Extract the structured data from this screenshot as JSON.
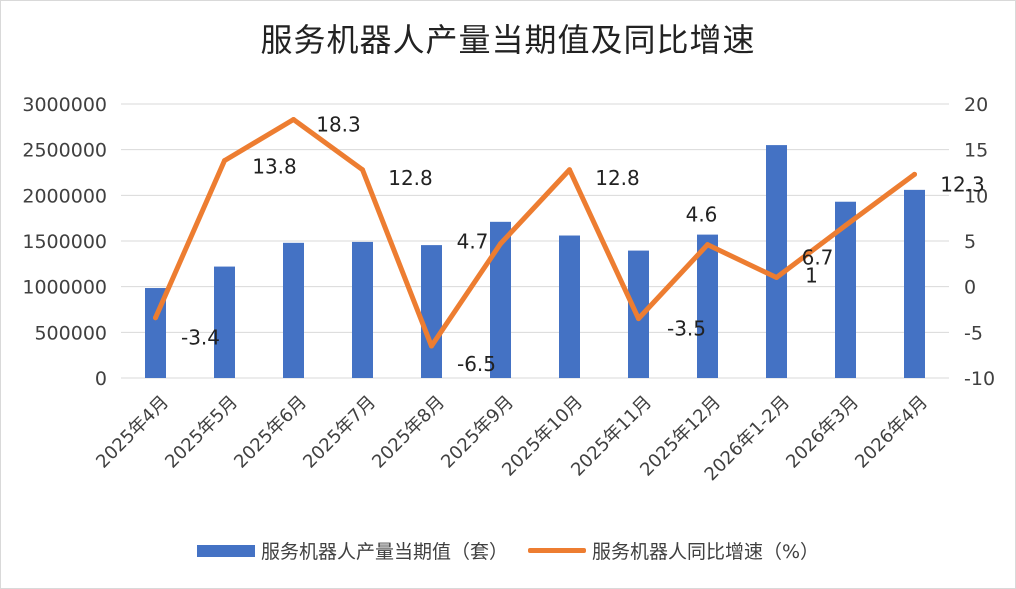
{
  "chart_data": {
    "type": "bar",
    "title": "服务机器人产量当期值及同比增速",
    "categories": [
      "2025年4月",
      "2025年5月",
      "2025年6月",
      "2025年7月",
      "2025年8月",
      "2025年9月",
      "2025年10月",
      "2025年11月",
      "2025年12月",
      "2026年1-2月",
      "2026年3月",
      "2026年4月"
    ],
    "series": [
      {
        "name": "服务机器人产量当期值（套）",
        "type": "bar",
        "axis": "left",
        "color": "#4472C4",
        "values": [
          985000,
          1220000,
          1480000,
          1490000,
          1455000,
          1710000,
          1560000,
          1395000,
          1570000,
          2550000,
          1930000,
          2060000
        ]
      },
      {
        "name": "服务机器人同比增速（%）",
        "type": "line",
        "axis": "right",
        "color": "#ED7D31",
        "values": [
          -3.4,
          13.8,
          18.3,
          12.8,
          -6.5,
          4.7,
          12.8,
          -3.5,
          4.6,
          1,
          6.7,
          12.3
        ],
        "labels": [
          "-3.4",
          "13.8",
          "18.3",
          "12.8",
          "-6.5",
          "4.7",
          "12.8",
          "-3.5",
          "4.6",
          "1",
          "6.7",
          "12.3"
        ]
      }
    ],
    "y_left": {
      "min": 0,
      "max": 3000000,
      "ticks": [
        "0",
        "500000",
        "1000000",
        "1500000",
        "2000000",
        "2500000",
        "3000000"
      ]
    },
    "y_right": {
      "min": -10,
      "max": 20,
      "ticks": [
        "-10",
        "-5",
        "0",
        "5",
        "10",
        "15",
        "20"
      ]
    },
    "grid": true,
    "legend_position": "bottom"
  }
}
